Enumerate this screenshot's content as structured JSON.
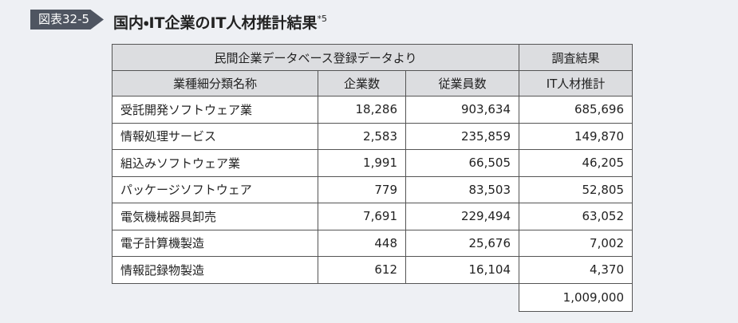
{
  "header": {
    "badge": "図表32-5",
    "title": "国内・IT企業のIT人材推計結果",
    "note": "*5"
  },
  "table": {
    "group_headers": [
      "民間企業データベース登録データより",
      "調査結果"
    ],
    "columns": [
      "業種細分類名称",
      "企業数",
      "従業員数",
      "IT人材推計"
    ],
    "rows": [
      [
        "受託開発ソフトウェア業",
        "18,286",
        "903,634",
        "685,696"
      ],
      [
        "情報処理サービス",
        "2,583",
        "235,859",
        "149,870"
      ],
      [
        "組込みソフトウェア業",
        "1,991",
        "66,505",
        "46,205"
      ],
      [
        "パッケージソフトウェア",
        "779",
        "83,503",
        "52,805"
      ],
      [
        "電気機械器具卸売",
        "7,691",
        "229,494",
        "63,052"
      ],
      [
        "電子計算機製造",
        "448",
        "25,676",
        "7,002"
      ],
      [
        "情報記録物製造",
        "612",
        "16,104",
        "4,370"
      ]
    ],
    "total": "1,009,000"
  }
}
